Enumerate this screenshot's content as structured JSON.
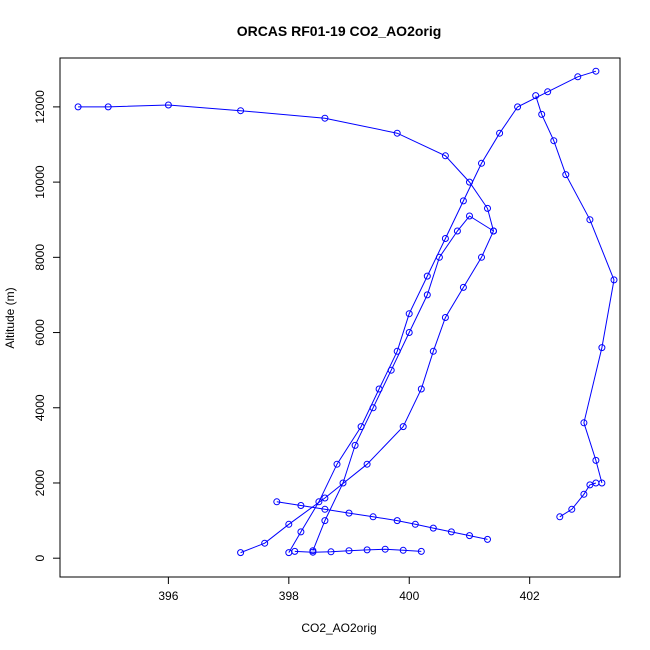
{
  "chart_data": {
    "type": "line",
    "title": "ORCAS RF01-19 CO2_AO2orig",
    "xlabel": "CO2_AO2orig",
    "ylabel": "Altitude (m)",
    "xlim": [
      394.2,
      403.5
    ],
    "ylim": [
      -500,
      13300
    ],
    "x_ticks": [
      396,
      398,
      400,
      402
    ],
    "y_ticks": [
      0,
      2000,
      4000,
      6000,
      8000,
      10000,
      12000
    ],
    "grid": false,
    "legend": "none",
    "marker": "open-circle",
    "color": "#0000ff",
    "series": [
      {
        "x": [
          397.2,
          397.6,
          398.0,
          398.6,
          399.3,
          399.9,
          400.2,
          400.4,
          400.6,
          400.9,
          401.2,
          401.4,
          401.3,
          401.0,
          400.6,
          399.8,
          398.6,
          397.2,
          396.0,
          395.0,
          394.5
        ],
        "y": [
          150,
          400,
          900,
          1600,
          2500,
          3500,
          4500,
          5500,
          6400,
          7200,
          8000,
          8700,
          9300,
          10000,
          10700,
          11300,
          11700,
          11900,
          12050,
          12000,
          12000
        ]
      },
      {
        "x": [
          398.0,
          398.2,
          398.5,
          398.8,
          399.2,
          399.5,
          399.8,
          400.0,
          400.3,
          400.6,
          400.9,
          401.2,
          401.5,
          401.8,
          402.3,
          402.8,
          403.1
        ],
        "y": [
          150,
          700,
          1500,
          2500,
          3500,
          4500,
          5500,
          6500,
          7500,
          8500,
          9500,
          10500,
          11300,
          12000,
          12400,
          12800,
          12950
        ]
      },
      {
        "x": [
          398.4,
          398.6,
          398.9,
          399.1,
          399.4,
          399.7,
          400.0,
          400.3,
          400.5,
          400.8,
          401.0,
          401.4
        ],
        "y": [
          200,
          1000,
          2000,
          3000,
          4000,
          5000,
          6000,
          7000,
          8000,
          8700,
          9100,
          8700
        ]
      },
      {
        "x": [
          403.2,
          403.1,
          402.9,
          403.2,
          403.4,
          403.0,
          402.6,
          402.4,
          402.2,
          402.1
        ],
        "y": [
          2000,
          2600,
          3600,
          5600,
          7400,
          9000,
          10200,
          11100,
          11800,
          12300
        ]
      },
      {
        "x": [
          402.5,
          402.7,
          402.9,
          403.0,
          403.1
        ],
        "y": [
          1100,
          1300,
          1700,
          1950,
          2000
        ]
      },
      {
        "x": [
          397.8,
          398.2,
          398.6,
          399.0,
          399.4,
          399.8,
          400.1,
          400.4,
          400.7,
          401.0,
          401.3
        ],
        "y": [
          1500,
          1400,
          1300,
          1200,
          1100,
          1000,
          900,
          800,
          700,
          600,
          500
        ]
      },
      {
        "x": [
          398.1,
          398.4,
          398.7,
          399.0,
          399.3,
          399.6,
          399.9,
          400.2
        ],
        "y": [
          180,
          160,
          170,
          200,
          220,
          240,
          210,
          180
        ]
      }
    ]
  }
}
